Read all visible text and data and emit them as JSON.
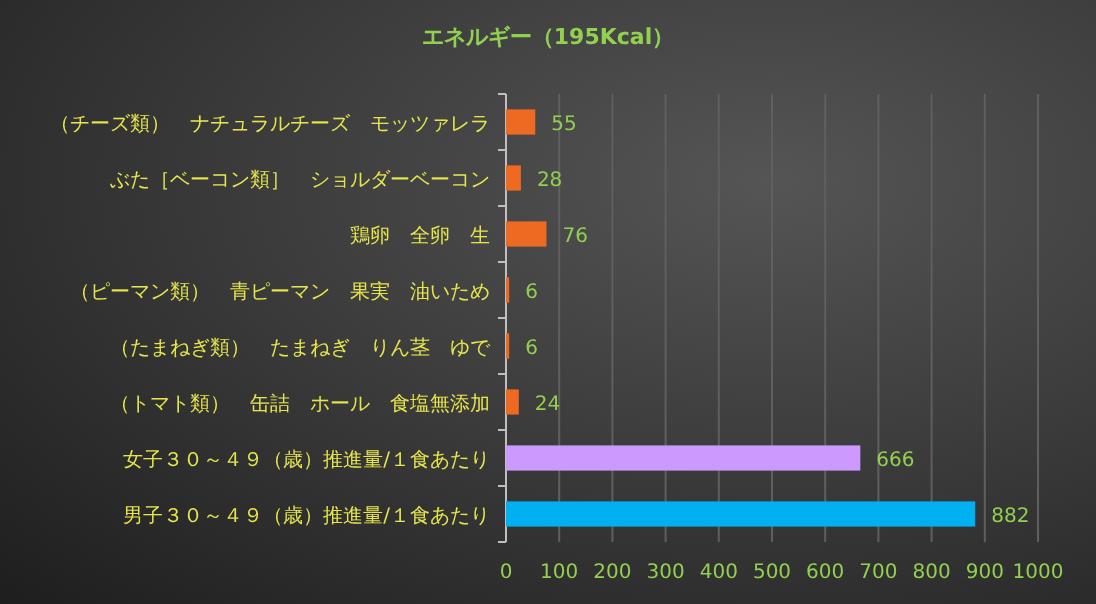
{
  "chart_data": {
    "type": "bar",
    "orientation": "horizontal",
    "title": "エネルギー（195Kcal）",
    "categories": [
      "（チーズ類）　ナチュラルチーズ　モッツァレラ",
      "ぶた［ベーコン類］　ショルダーベーコン",
      "鶏卵　全卵　生",
      "（ピーマン類）　青ピーマン　果実　油いため",
      "（たまねぎ類）　たまねぎ　りん茎　ゆで",
      "（トマト類）　缶詰　ホール　食塩無添加",
      "女子３０～４９（歳）推進量/１食あたり",
      "男子３０～４９（歳）推進量/１食あたり"
    ],
    "values": [
      55,
      28,
      76,
      6,
      6,
      24,
      666,
      882
    ],
    "colors": [
      "#ee6a22",
      "#ee6a22",
      "#ee6a22",
      "#ee6a22",
      "#ee6a22",
      "#ee6a22",
      "#cc99ff",
      "#00b0f0"
    ],
    "xlim": [
      0,
      1000
    ],
    "xticks": [
      0,
      100,
      200,
      300,
      400,
      500,
      600,
      700,
      800,
      900,
      1000
    ],
    "grid": "x",
    "data_labels": true
  }
}
